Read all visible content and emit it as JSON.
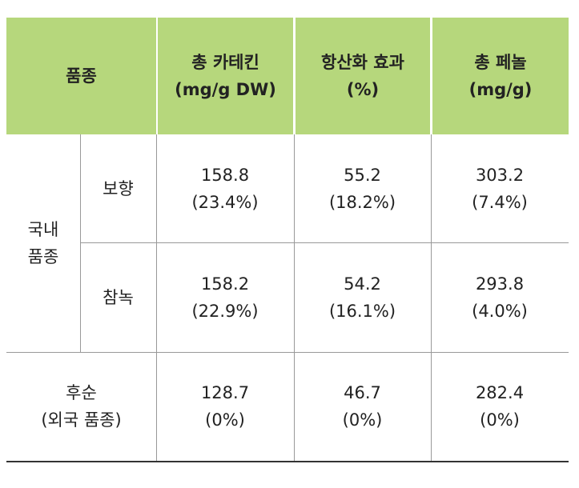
{
  "table": {
    "header": [
      [
        "품종"
      ],
      [
        "총 카테킨",
        "(mg/g DW)"
      ],
      [
        "항산화 효과",
        "(%)"
      ],
      [
        "총 페놀",
        "(mg/g)"
      ]
    ],
    "group": [
      "국내",
      "품종"
    ],
    "rows": [
      {
        "label": [
          "보향"
        ],
        "cells": [
          [
            "158.8",
            "(23.4%)"
          ],
          [
            "55.2",
            "(18.2%)"
          ],
          [
            "303.2",
            "(7.4%)"
          ]
        ]
      },
      {
        "label": [
          "참녹"
        ],
        "cells": [
          [
            "158.2",
            "(22.9%)"
          ],
          [
            "54.2",
            "(16.1%)"
          ],
          [
            "293.8",
            "(4.0%)"
          ]
        ]
      },
      {
        "label": [
          "후순",
          "(외국 품종)"
        ],
        "cells": [
          [
            "128.7",
            "(0%)"
          ],
          [
            "46.7",
            "(0%)"
          ],
          [
            "282.4",
            "(0%)"
          ]
        ]
      }
    ]
  }
}
